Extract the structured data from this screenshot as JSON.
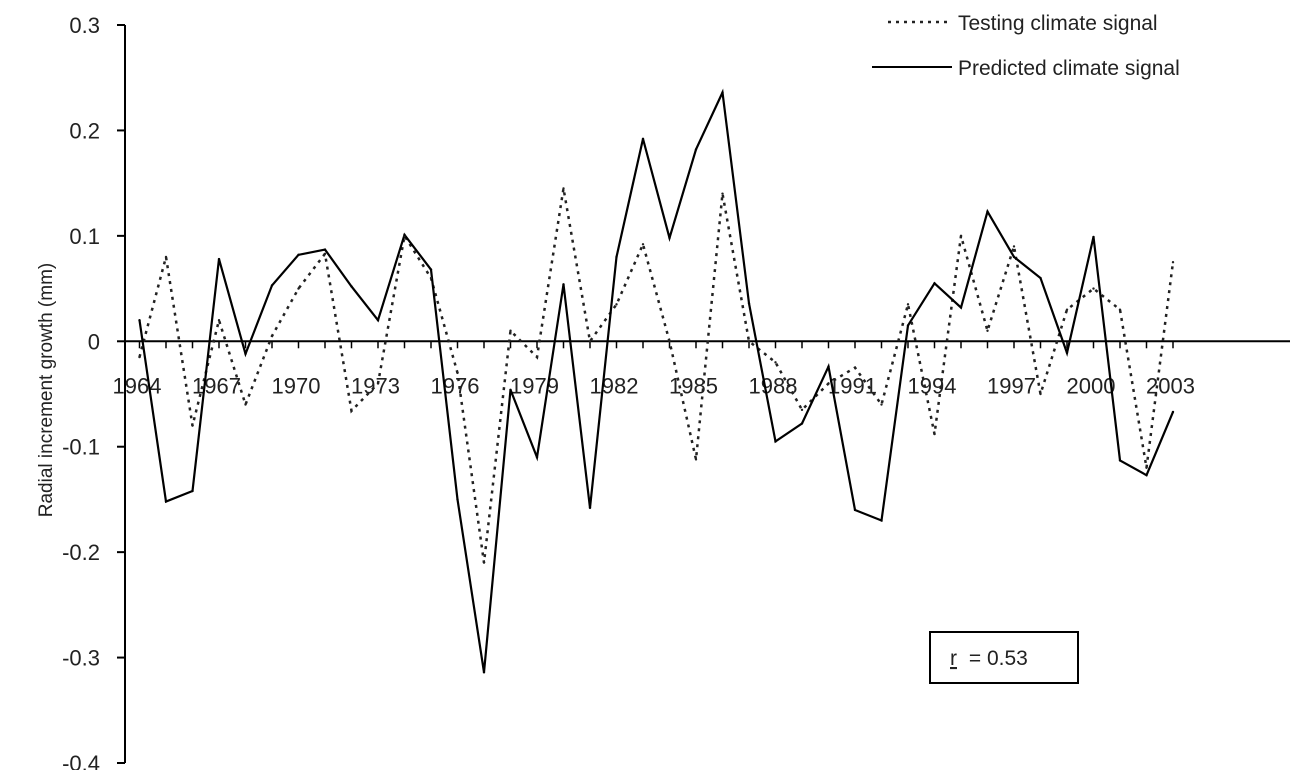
{
  "chart_data": {
    "type": "line",
    "title": "",
    "xlabel": "",
    "ylabel": "Radial increment growth (mm)",
    "ylim": [
      -0.4,
      0.3
    ],
    "xlim": [
      1964,
      2004
    ],
    "y_ticks": [
      "0.3",
      "0.2",
      "0.1",
      "0",
      "-0.1",
      "-0.2",
      "-0.3",
      "-0.4"
    ],
    "y_tick_values": [
      0.3,
      0.2,
      0.1,
      0,
      -0.1,
      -0.2,
      -0.3,
      -0.4
    ],
    "x_ticks": [
      "1964",
      "1967",
      "1970",
      "1973",
      "1976",
      "1979",
      "1982",
      "1985",
      "1988",
      "1991",
      "1994",
      "1997",
      "2000",
      "2003"
    ],
    "x_tick_values": [
      1964,
      1967,
      1970,
      1973,
      1976,
      1979,
      1982,
      1985,
      1988,
      1991,
      1994,
      1997,
      2000,
      2003
    ],
    "grid": false,
    "legend_position": "top-right",
    "x": [
      1965,
      1966,
      1967,
      1968,
      1969,
      1970,
      1971,
      1972,
      1973,
      1974,
      1975,
      1976,
      1977,
      1978,
      1979,
      1980,
      1981,
      1982,
      1983,
      1984,
      1985,
      1986,
      1987,
      1988,
      1989,
      1990,
      1991,
      1992,
      1993,
      1994,
      1995,
      1996,
      1997,
      1998,
      1999,
      2000,
      2001,
      2002,
      2003,
      2004
    ],
    "series": [
      {
        "name": "Testing climate signal",
        "style": "dotted",
        "color": "#222222",
        "values": [
          -0.015,
          0.08,
          -0.08,
          0.02,
          -0.06,
          0.005,
          0.05,
          0.083,
          -0.066,
          -0.04,
          0.1,
          0.06,
          -0.03,
          -0.21,
          0.01,
          -0.015,
          0.145,
          0.0,
          0.035,
          0.092,
          0.0,
          -0.112,
          0.14,
          0.0,
          -0.02,
          -0.065,
          -0.04,
          -0.025,
          -0.06,
          0.035,
          -0.088,
          0.1,
          0.01,
          0.09,
          -0.05,
          0.03,
          0.05,
          0.03,
          -0.12,
          0.075
        ]
      },
      {
        "name": "Predicted climate signal",
        "style": "solid",
        "color": "#000000",
        "values": [
          0.02,
          -0.152,
          -0.142,
          0.078,
          -0.012,
          0.053,
          0.082,
          0.087,
          0.052,
          0.02,
          0.101,
          0.068,
          -0.15,
          -0.314,
          -0.046,
          -0.11,
          0.054,
          -0.158,
          0.08,
          0.192,
          0.098,
          0.182,
          0.236,
          0.036,
          -0.095,
          -0.078,
          -0.024,
          -0.16,
          -0.17,
          0.015,
          0.055,
          0.032,
          0.123,
          0.08,
          0.06,
          -0.011,
          0.099,
          -0.113,
          -0.127,
          -0.067
        ]
      }
    ],
    "annotation": {
      "r_symbol": "r",
      "equals": "= 0.53"
    }
  }
}
